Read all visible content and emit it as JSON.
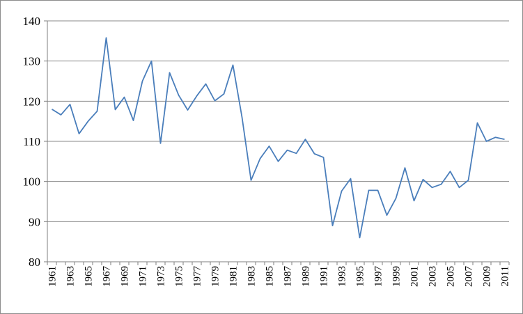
{
  "chart_data": {
    "type": "line",
    "title": "",
    "xlabel": "",
    "ylabel": "",
    "ylim": [
      80,
      140
    ],
    "yticks": [
      80,
      90,
      100,
      110,
      120,
      130,
      140
    ],
    "grid": true,
    "x": [
      1961,
      1962,
      1963,
      1964,
      1965,
      1966,
      1967,
      1968,
      1969,
      1970,
      1971,
      1972,
      1973,
      1974,
      1975,
      1976,
      1977,
      1978,
      1979,
      1980,
      1981,
      1982,
      1983,
      1984,
      1985,
      1986,
      1987,
      1988,
      1989,
      1990,
      1991,
      1992,
      1993,
      1994,
      1995,
      1996,
      1997,
      1998,
      1999,
      2000,
      2001,
      2002,
      2003,
      2004,
      2005,
      2006,
      2007,
      2008,
      2009,
      2010,
      2011
    ],
    "xtick_labels": [
      "1961",
      "1963",
      "1965",
      "1967",
      "1969",
      "1971",
      "1973",
      "1975",
      "1977",
      "1979",
      "1981",
      "1983",
      "1985",
      "1987",
      "1989",
      "1991",
      "1993",
      "1995",
      "1997",
      "1999",
      "2001",
      "2003",
      "2005",
      "2007",
      "2009",
      "2011"
    ],
    "series": [
      {
        "color": "#4a7ebb",
        "values": [
          118,
          116.6,
          119.2,
          111.9,
          115,
          117.5,
          135.8,
          117.9,
          121,
          115.2,
          125,
          130,
          109.5,
          127.1,
          121.5,
          117.8,
          121.3,
          124.3,
          120.1,
          121.8,
          129,
          116,
          100.3,
          105.7,
          108.8,
          105,
          107.8,
          107,
          110.5,
          106.9,
          106,
          89,
          97.6,
          100.7,
          86,
          97.8,
          97.8,
          91.6,
          95.8,
          103.4,
          95.2,
          100.5,
          98.5,
          99.3,
          102.5,
          98.5,
          100.3,
          114.6,
          110,
          111,
          110.5
        ]
      }
    ]
  }
}
